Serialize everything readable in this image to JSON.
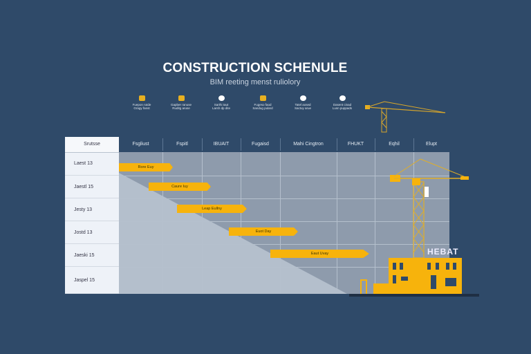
{
  "header": {
    "title": "CONSTRUCTION SCHENULE",
    "subtitle": "BIM reeting menst ruliolory"
  },
  "features": [
    {
      "icon": "factory-icon",
      "line1": "Fuepon rutde",
      "line2": "Gragy fanst"
    },
    {
      "icon": "gear-icon",
      "line1": "Gapber ranuse",
      "line2": "Ruditg aruse"
    },
    {
      "icon": "pin-icon",
      "line1": "Sarthi taut",
      "line2": "Larsh dp dite"
    },
    {
      "icon": "box-icon",
      "line1": "Fugeso faod",
      "line2": "Sandug pulard"
    },
    {
      "icon": "cloud-icon",
      "line1": "Tatel aosed",
      "line2": "Sactuy arue"
    },
    {
      "icon": "location-icon",
      "line1": "Dasent cinad",
      "line2": "Lusn puppads"
    }
  ],
  "table": {
    "corner_header": "Srutsse",
    "columns": [
      "Fsgliust",
      "Fspitl",
      "IBUAIT",
      "Fugaisd",
      "Mahi Cingtron",
      "FHUKT",
      "Eqhil",
      "Elupt"
    ],
    "rows": [
      "Laest 13",
      "Jaestl 15",
      "Jesty 13",
      "Jostd 13",
      "Jaeski 15",
      "Jaspel 15"
    ],
    "tasks": [
      {
        "label": "Rore Euy",
        "row": 0
      },
      {
        "label": "Caure Iuy",
        "row": 1
      },
      {
        "label": "Leap Eullny",
        "row": 2
      },
      {
        "label": "Euot Day",
        "row": 3
      },
      {
        "label": "Eaut Uvay",
        "row": 4
      }
    ]
  },
  "building_sign": "HEBAT",
  "colors": {
    "background": "#2f4a69",
    "accent": "#f7b30c",
    "grid": "#8e9bac"
  }
}
